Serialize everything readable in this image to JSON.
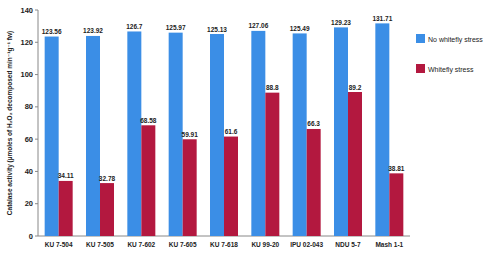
{
  "chart_data": {
    "type": "bar",
    "y_label": "Catalase activity (µmoles of H₂O₂ decomposed min⁻¹g⁻¹ fw)",
    "categories": [
      "KU 7-504",
      "KU 7-505",
      "KU 7-602",
      "KU 7-605",
      "KU 7-618",
      "KU 99-20",
      "IPU 02-043",
      "NDU 5-7",
      "Mash 1-1"
    ],
    "series": [
      {
        "name": "No whitefly stress",
        "color": "#3b8ee6",
        "values": [
          123.56,
          123.92,
          126.7,
          125.97,
          125.13,
          127.06,
          125.49,
          129.23,
          131.71
        ]
      },
      {
        "name": "Whitefly stress",
        "color": "#b3183f",
        "values": [
          34.11,
          32.78,
          68.58,
          59.91,
          61.6,
          88.8,
          66.3,
          89.2,
          38.81
        ]
      }
    ],
    "ylim": [
      0,
      140
    ],
    "yticks": [
      0,
      20,
      40,
      60,
      80,
      100,
      120,
      140
    ],
    "grid": false,
    "legend": "right",
    "data_labels": true
  }
}
